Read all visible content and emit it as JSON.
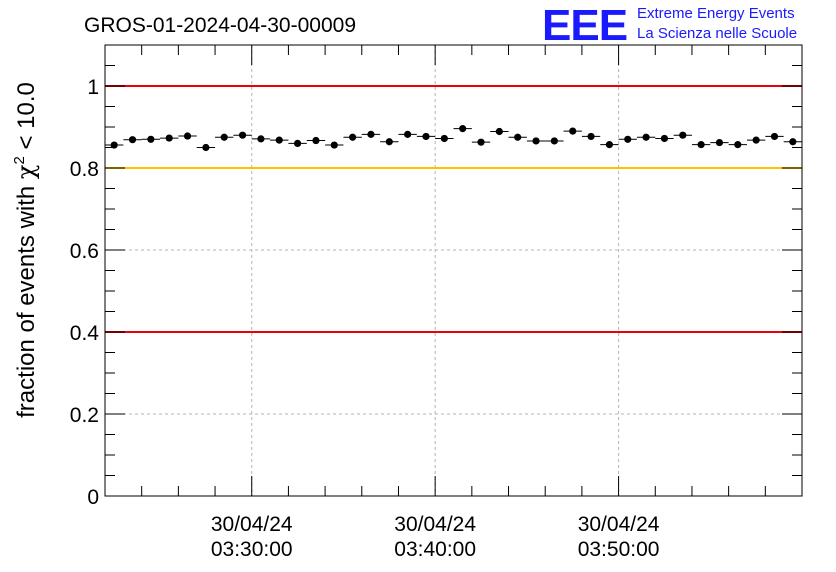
{
  "title": "GROS-01-2024-04-30-00009",
  "logo": {
    "mark": "EEE",
    "line1": "Extreme Energy Events",
    "line2": "La Scienza nelle Scuole"
  },
  "chart_data": {
    "type": "scatter",
    "title": "GROS-01-2024-04-30-00009",
    "ylabel": {
      "prefix": "fraction of events with ",
      "symbol": "χ",
      "superscript": "2",
      "suffix": " < 10.0"
    },
    "xlabel": "",
    "ylim": [
      0,
      1.1
    ],
    "y_ticks": [
      0,
      0.2,
      0.4,
      0.6,
      0.8,
      1
    ],
    "y_tick_labels": [
      "0",
      "0.2",
      "0.4",
      "0.6",
      "0.8",
      "1"
    ],
    "x_range_minutes": [
      0,
      38
    ],
    "x_ticks": [
      {
        "minute": 8,
        "date": "30/04/24",
        "time": "03:30:00"
      },
      {
        "minute": 18,
        "date": "30/04/24",
        "time": "03:40:00"
      },
      {
        "minute": 28,
        "date": "30/04/24",
        "time": "03:50:00"
      }
    ],
    "grid": true,
    "reference_lines": [
      {
        "y": 1.0,
        "color": "#e8000b"
      },
      {
        "y": 0.8,
        "color": "#ffc000"
      },
      {
        "y": 0.4,
        "color": "#e8000b"
      }
    ],
    "marker_color": "#000000",
    "series": [
      {
        "values": [
          0.856,
          0.869,
          0.87,
          0.873,
          0.878,
          0.85,
          0.875,
          0.88,
          0.871,
          0.868,
          0.86,
          0.867,
          0.856,
          0.875,
          0.882,
          0.864,
          0.882,
          0.877,
          0.872,
          0.896,
          0.863,
          0.889,
          0.875,
          0.866,
          0.866,
          0.89,
          0.877,
          0.857,
          0.87,
          0.875,
          0.872,
          0.88,
          0.857,
          0.862,
          0.857,
          0.868,
          0.877,
          0.864
        ],
        "errors": [
          0.006,
          0.005,
          0.005,
          0.005,
          0.005,
          0.006,
          0.005,
          0.005,
          0.005,
          0.005,
          0.006,
          0.005,
          0.006,
          0.005,
          0.005,
          0.006,
          0.005,
          0.005,
          0.005,
          0.005,
          0.006,
          0.005,
          0.005,
          0.005,
          0.005,
          0.005,
          0.005,
          0.006,
          0.005,
          0.005,
          0.005,
          0.005,
          0.006,
          0.006,
          0.006,
          0.005,
          0.005,
          0.008
        ]
      }
    ]
  }
}
